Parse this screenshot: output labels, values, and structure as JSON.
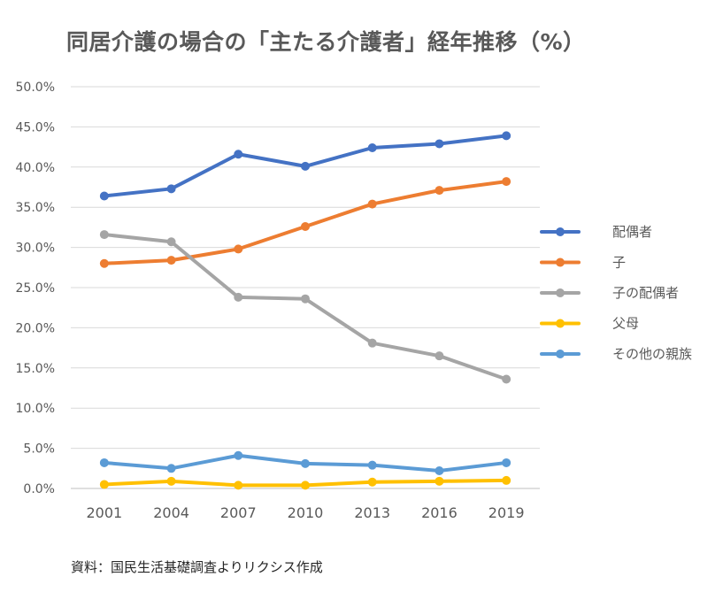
{
  "title": "同居介護の場合の「主たる介護者」経年推移（%）",
  "source": "資料：国民生活基礎調査よりリクシス作成",
  "chart_data": {
    "type": "line",
    "title": "同居介護の場合の「主たる介護者」経年推移（%）",
    "xlabel": "",
    "ylabel": "",
    "x": [
      "2001",
      "2004",
      "2007",
      "2010",
      "2013",
      "2016",
      "2019"
    ],
    "ylim": [
      0,
      50
    ],
    "y_ticks": [
      "0.0%",
      "5.0%",
      "10.0%",
      "15.0%",
      "20.0%",
      "25.0%",
      "30.0%",
      "35.0%",
      "40.0%",
      "45.0%",
      "50.0%"
    ],
    "y_tick_values": [
      0,
      5,
      10,
      15,
      20,
      25,
      30,
      35,
      40,
      45,
      50
    ],
    "grid": true,
    "legend_position": "right",
    "series": [
      {
        "name": "配偶者",
        "color": "#4472c4",
        "values": [
          36.4,
          37.3,
          41.6,
          40.1,
          42.4,
          42.9,
          43.9
        ]
      },
      {
        "name": "子",
        "color": "#ed7d31",
        "values": [
          28.0,
          28.4,
          29.8,
          32.6,
          35.4,
          37.1,
          38.2
        ]
      },
      {
        "name": "子の配偶者",
        "color": "#a5a5a5",
        "values": [
          31.6,
          30.7,
          23.8,
          23.6,
          18.1,
          16.5,
          13.6
        ]
      },
      {
        "name": "父母",
        "color": "#ffc000",
        "values": [
          0.5,
          0.9,
          0.4,
          0.4,
          0.8,
          0.9,
          1.0
        ]
      },
      {
        "name": "その他の親族",
        "color": "#5b9bd5",
        "values": [
          3.2,
          2.5,
          4.1,
          3.1,
          2.9,
          2.2,
          3.2
        ]
      }
    ]
  }
}
